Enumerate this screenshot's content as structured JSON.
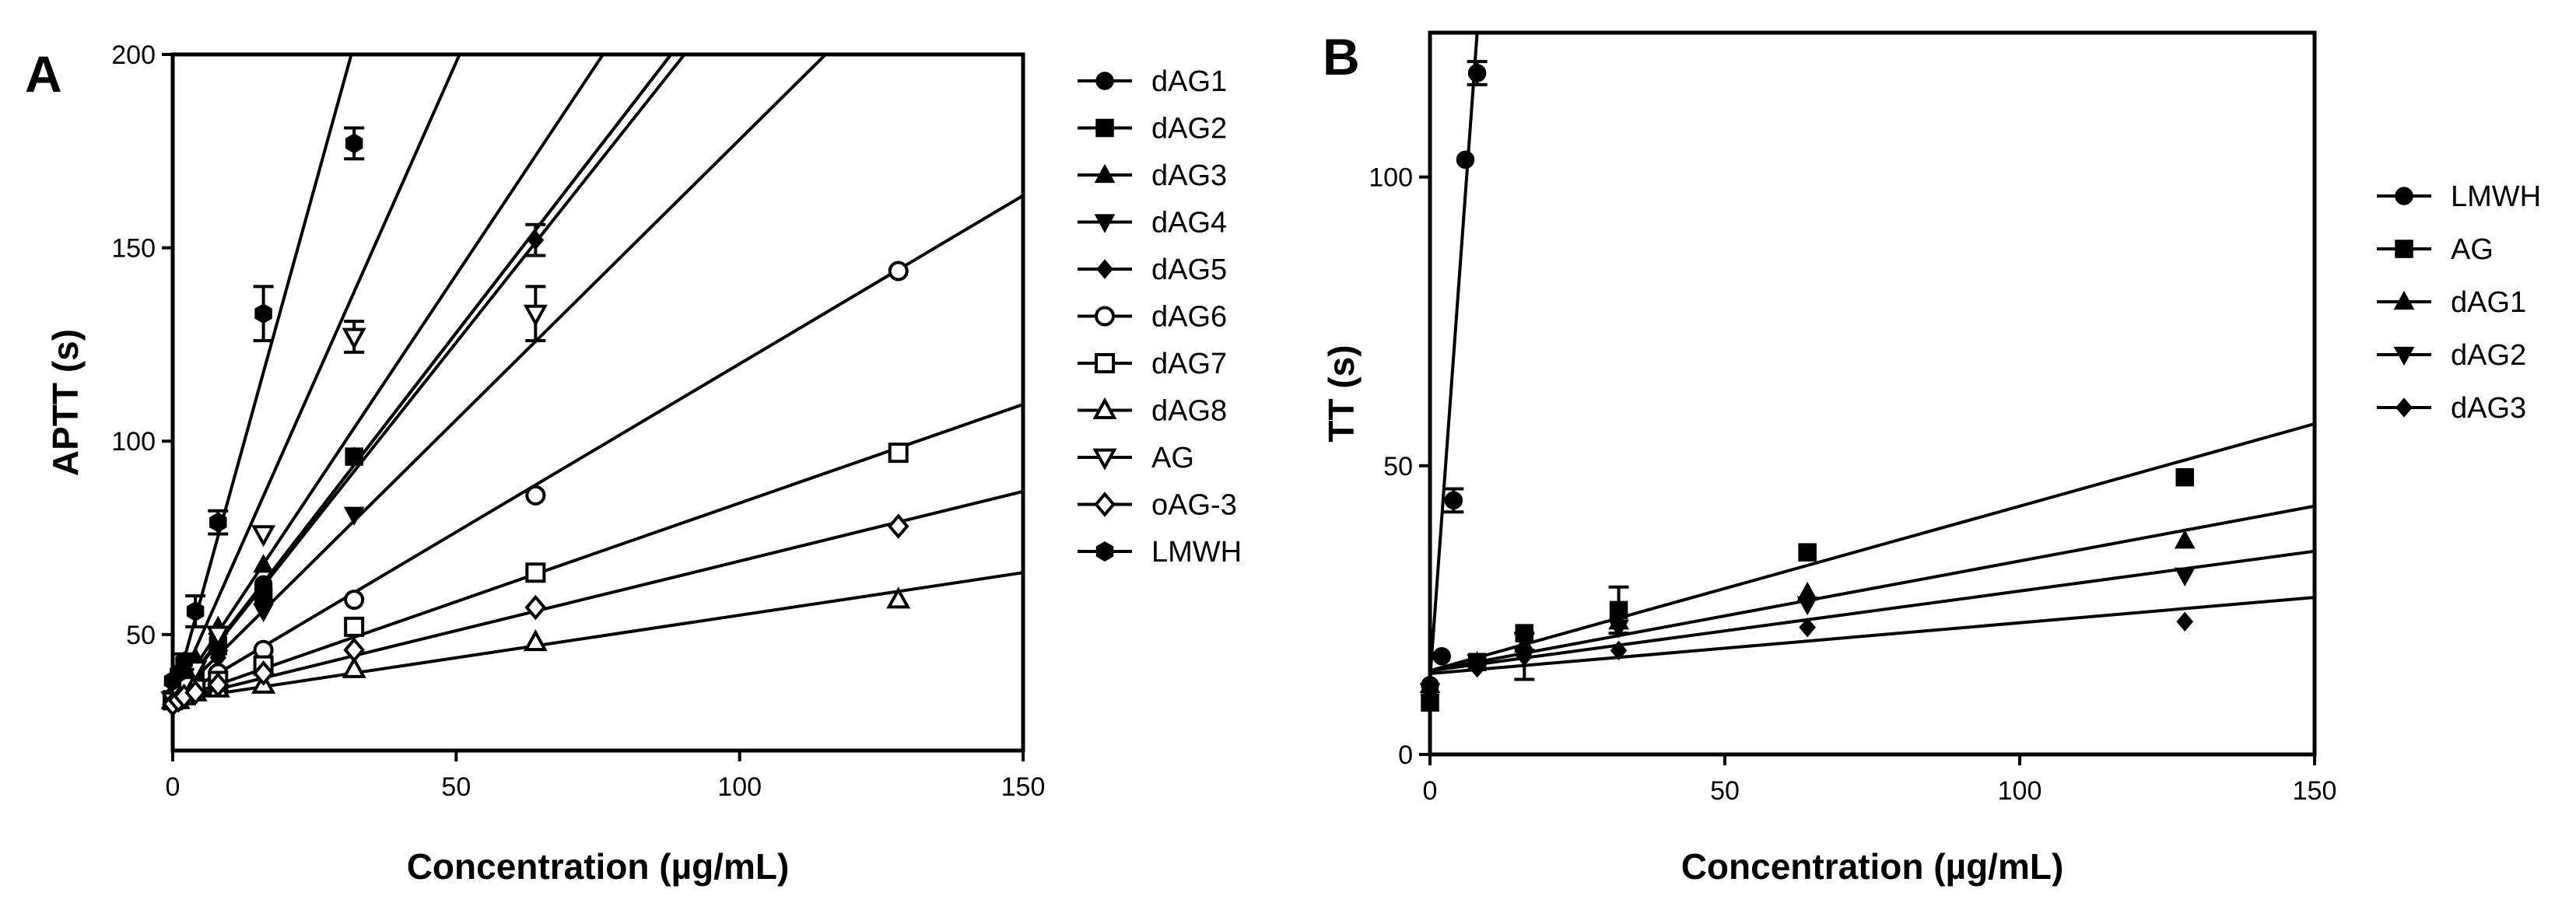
{
  "chart_data": [
    {
      "type": "scatter",
      "panel": "A",
      "xlabel": "Concentration (µg/mL)",
      "ylabel": "APTT (s)",
      "xlim": [
        0,
        150
      ],
      "ylim": [
        20,
        200
      ],
      "xticks": [
        "0",
        "50",
        "100",
        "150"
      ],
      "yticks": [
        "50",
        "100",
        "150",
        "200"
      ],
      "legend_position": "right",
      "series": [
        {
          "name": "dAG1",
          "marker": "circle-filled",
          "x": [
            0,
            1,
            2,
            4,
            8,
            16
          ],
          "y": [
            34,
            36,
            38,
            42,
            49,
            63
          ],
          "fit": [
            33,
            1.9
          ]
        },
        {
          "name": "dAG2",
          "marker": "square-filled",
          "x": [
            0,
            1,
            2,
            4,
            8,
            16,
            32
          ],
          "y": [
            33,
            35,
            37,
            40,
            47,
            60,
            96
          ],
          "fit": [
            33,
            1.9
          ]
        },
        {
          "name": "dAG3",
          "marker": "triangle-up-filled",
          "x": [
            0,
            1,
            2,
            4,
            8,
            16
          ],
          "y": [
            34,
            37,
            39,
            44,
            52,
            68
          ],
          "fit": [
            33,
            2.2
          ]
        },
        {
          "name": "dAG4",
          "marker": "triangle-down-filled",
          "x": [
            0,
            1,
            2,
            4,
            8,
            16,
            32
          ],
          "y": [
            33,
            35,
            36,
            39,
            44,
            56,
            81
          ],
          "fit": [
            33,
            1.45
          ]
        },
        {
          "name": "dAG5",
          "marker": "diamond-filled",
          "x": [
            0,
            1,
            2,
            4,
            8,
            16,
            32,
            64
          ],
          "y": [
            33,
            35,
            36,
            39,
            44,
            60,
            96,
            152
          ],
          "fit": [
            33,
            1.85
          ],
          "err": [
            0,
            0,
            0,
            0,
            0,
            0,
            0,
            4
          ]
        },
        {
          "name": "dAG6",
          "marker": "circle-open",
          "x": [
            0,
            1,
            2,
            4,
            8,
            16,
            32,
            64,
            128
          ],
          "y": [
            33,
            34,
            35,
            37,
            40,
            46,
            59,
            86,
            144
          ],
          "fit": [
            33,
            0.87
          ]
        },
        {
          "name": "dAG7",
          "marker": "square-open",
          "x": [
            0,
            1,
            2,
            4,
            8,
            16,
            32,
            64,
            128
          ],
          "y": [
            33,
            34,
            35,
            36,
            38,
            42,
            52,
            66,
            97
          ],
          "fit": [
            33,
            0.51
          ]
        },
        {
          "name": "dAG8",
          "marker": "triangle-up-open",
          "x": [
            0,
            1,
            2,
            4,
            8,
            16,
            32,
            64,
            128
          ],
          "y": [
            33,
            33,
            34,
            35,
            36,
            37,
            41,
            48,
            59
          ],
          "fit": [
            33,
            0.22
          ]
        },
        {
          "name": "AG",
          "marker": "triangle-down-open",
          "x": [
            0,
            1,
            2,
            4,
            8,
            16,
            32,
            64
          ],
          "y": [
            33,
            35,
            37,
            41,
            50,
            76,
            127,
            133
          ],
          "fit": [
            33,
            3.3
          ],
          "err": [
            0,
            0,
            0,
            0,
            0,
            0,
            4,
            7
          ]
        },
        {
          "name": "oAG-3",
          "marker": "diamond-open",
          "x": [
            0,
            1,
            2,
            4,
            8,
            16,
            32,
            64,
            128
          ],
          "y": [
            32,
            33,
            34,
            35,
            37,
            40,
            46,
            57,
            78
          ],
          "fit": [
            33,
            0.36
          ]
        },
        {
          "name": "LMWH",
          "marker": "hex-filled",
          "x": [
            0,
            1,
            2,
            4,
            8,
            16,
            32
          ],
          "y": [
            38,
            40,
            43,
            56,
            79,
            133,
            177
          ],
          "fit": [
            33,
            5.3
          ],
          "err": [
            0,
            0,
            2,
            4,
            3,
            7,
            4
          ]
        }
      ]
    },
    {
      "type": "scatter",
      "panel": "B",
      "xlabel": "Concentration (µg/mL)",
      "ylabel": "TT (s)",
      "xlim": [
        0,
        150
      ],
      "ylim": [
        0,
        125
      ],
      "xticks": [
        "0",
        "50",
        "100",
        "150"
      ],
      "yticks": [
        "0",
        "50",
        "100"
      ],
      "legend_position": "right",
      "series": [
        {
          "name": "LMWH",
          "marker": "circle-filled",
          "x": [
            0,
            2,
            4,
            6,
            8
          ],
          "y": [
            12,
            17,
            44,
            103,
            118
          ],
          "fit": [
            13,
            14
          ],
          "err": [
            0,
            0,
            2,
            0,
            2
          ]
        },
        {
          "name": "AG",
          "marker": "square-filled",
          "x": [
            0,
            8,
            16,
            32,
            64,
            128
          ],
          "y": [
            9,
            16,
            21,
            25,
            35,
            48
          ],
          "fit": [
            14.5,
            0.285
          ],
          "err": [
            0,
            0,
            0,
            4,
            0,
            0
          ]
        },
        {
          "name": "dAG1",
          "marker": "triangle-up-filled",
          "x": [
            0,
            8,
            16,
            32,
            64,
            128
          ],
          "y": [
            12,
            16,
            19,
            23,
            28,
            37
          ],
          "fit": [
            14.5,
            0.19
          ]
        },
        {
          "name": "dAG2",
          "marker": "triangle-down-filled",
          "x": [
            0,
            8,
            16,
            32,
            64,
            128
          ],
          "y": [
            11,
            16,
            17,
            22,
            26,
            31
          ],
          "fit": [
            14.5,
            0.138
          ],
          "err": [
            0,
            0,
            4,
            0,
            0,
            0
          ]
        },
        {
          "name": "dAG3",
          "marker": "diamond-filled",
          "x": [
            0,
            8,
            16,
            32,
            64,
            128
          ],
          "y": [
            11,
            15,
            17,
            18,
            22,
            23
          ],
          "fit": [
            14,
            0.088
          ]
        }
      ]
    }
  ],
  "panels": {
    "a_letter": "A",
    "b_letter": "B"
  }
}
